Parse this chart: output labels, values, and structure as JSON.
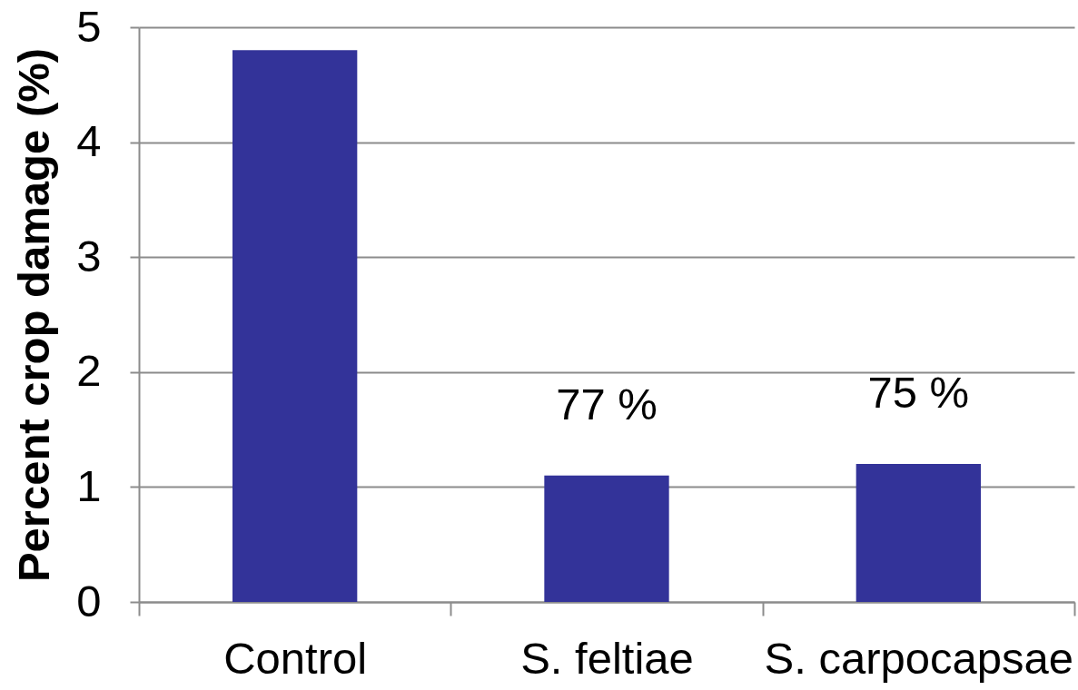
{
  "chart_data": {
    "type": "bar",
    "ylabel": "Percent crop damage (%)",
    "categories": [
      "Control",
      "S. feltiae",
      "S. carpocapsae"
    ],
    "values": [
      4.8,
      1.1,
      1.2
    ],
    "color": "#333399",
    "annotations": [
      {
        "text": "77 %",
        "x": "S. feltiae",
        "y": 1.1
      },
      {
        "text": "75 %",
        "x": "S. carpocapsae",
        "y": 1.2
      }
    ],
    "ylim": [
      0,
      5
    ],
    "yticks": [
      0,
      1,
      2,
      3,
      4,
      5
    ],
    "grid": "y"
  }
}
